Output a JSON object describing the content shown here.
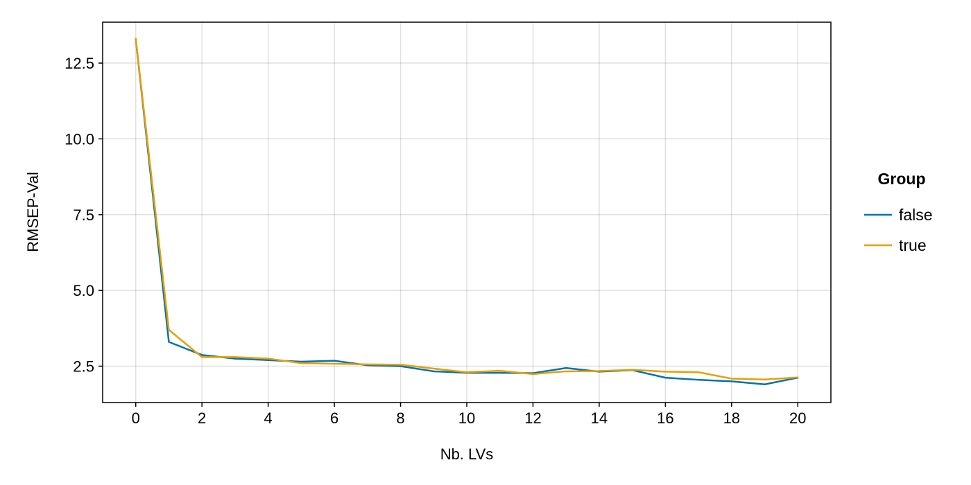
{
  "chart_data": {
    "type": "line",
    "title": "",
    "xlabel": "Nb. LVs",
    "ylabel": "RMSEP-Val",
    "xlim": [
      -1,
      21
    ],
    "ylim": [
      1.3,
      13.85
    ],
    "xticks": [
      0,
      2,
      4,
      6,
      8,
      10,
      12,
      14,
      16,
      18,
      20
    ],
    "xtick_labels": [
      "0",
      "2",
      "4",
      "6",
      "8",
      "10",
      "12",
      "14",
      "16",
      "18",
      "20"
    ],
    "yticks": [
      2.5,
      5.0,
      7.5,
      10.0,
      12.5
    ],
    "ytick_labels": [
      "2.5",
      "5.0",
      "7.5",
      "10.0",
      "12.5"
    ],
    "grid": true,
    "legend": {
      "title": "Group",
      "placement": "right"
    },
    "x": [
      0,
      1,
      2,
      3,
      4,
      5,
      6,
      7,
      8,
      9,
      10,
      11,
      12,
      13,
      14,
      15,
      16,
      17,
      18,
      19,
      20
    ],
    "series": [
      {
        "name": "false",
        "color": "#0072b2",
        "values": [
          13.3,
          3.3,
          2.87,
          2.75,
          2.7,
          2.65,
          2.68,
          2.53,
          2.5,
          2.33,
          2.28,
          2.28,
          2.27,
          2.44,
          2.32,
          2.37,
          2.12,
          2.05,
          2.0,
          1.9,
          2.12
        ]
      },
      {
        "name": "true",
        "color": "#e69f00",
        "values": [
          13.3,
          3.7,
          2.8,
          2.8,
          2.75,
          2.6,
          2.58,
          2.56,
          2.55,
          2.42,
          2.3,
          2.35,
          2.24,
          2.33,
          2.34,
          2.38,
          2.32,
          2.3,
          2.09,
          2.06,
          2.13
        ]
      }
    ]
  }
}
